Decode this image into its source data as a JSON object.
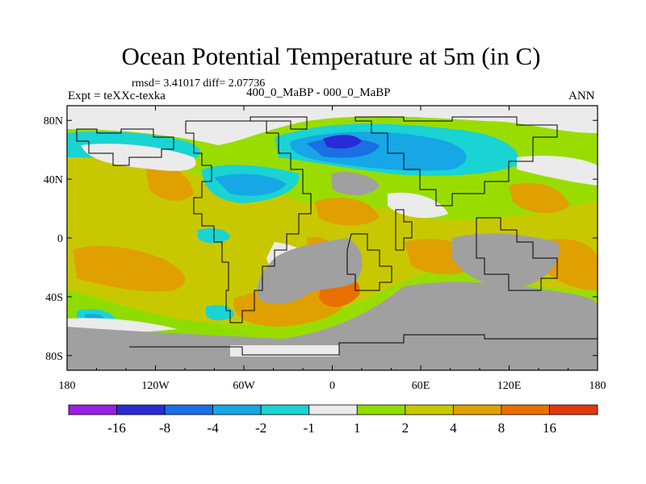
{
  "title": "Ocean Potential Temperature at 5m (in C)",
  "stats_line": "rmsd= 3.41017 diff= 2.07736",
  "experiment_label": "Expt = teXXc-texka",
  "period_label": "400_0_MaBP - 000_0_MaBP",
  "season_label": "ANN",
  "map": {
    "projection": "cylindrical-equidistant",
    "lon_range": [
      -180,
      180
    ],
    "lat_range": [
      -90,
      90
    ],
    "lon_ticks": [
      {
        "value": -180,
        "label": "180"
      },
      {
        "value": -120,
        "label": "120W"
      },
      {
        "value": -60,
        "label": "60W"
      },
      {
        "value": 0,
        "label": "0"
      },
      {
        "value": 60,
        "label": "60E"
      },
      {
        "value": 120,
        "label": "120E"
      },
      {
        "value": 180,
        "label": "180"
      }
    ],
    "lat_ticks": [
      {
        "value": 80,
        "label": "80N"
      },
      {
        "value": 40,
        "label": "40N"
      },
      {
        "value": 0,
        "label": "0"
      },
      {
        "value": -40,
        "label": "40S"
      },
      {
        "value": -80,
        "label": "80S"
      }
    ],
    "colors": {
      "ocean_background": "#99dd00",
      "land_mask": "#a0a0a0",
      "ice_neutral": "#ebebeb"
    }
  },
  "colorbar": {
    "colors": [
      "#9a1fe6",
      "#2b2bd6",
      "#1a6fe3",
      "#17a6e6",
      "#1ad3d3",
      "#ebebeb",
      "#8fdc00",
      "#c8c800",
      "#e0a000",
      "#e87000",
      "#e03a0c"
    ],
    "labels": [
      "-16",
      "-8",
      "-4",
      "-2",
      "-1",
      "1",
      "2",
      "4",
      "8",
      "16"
    ]
  }
}
